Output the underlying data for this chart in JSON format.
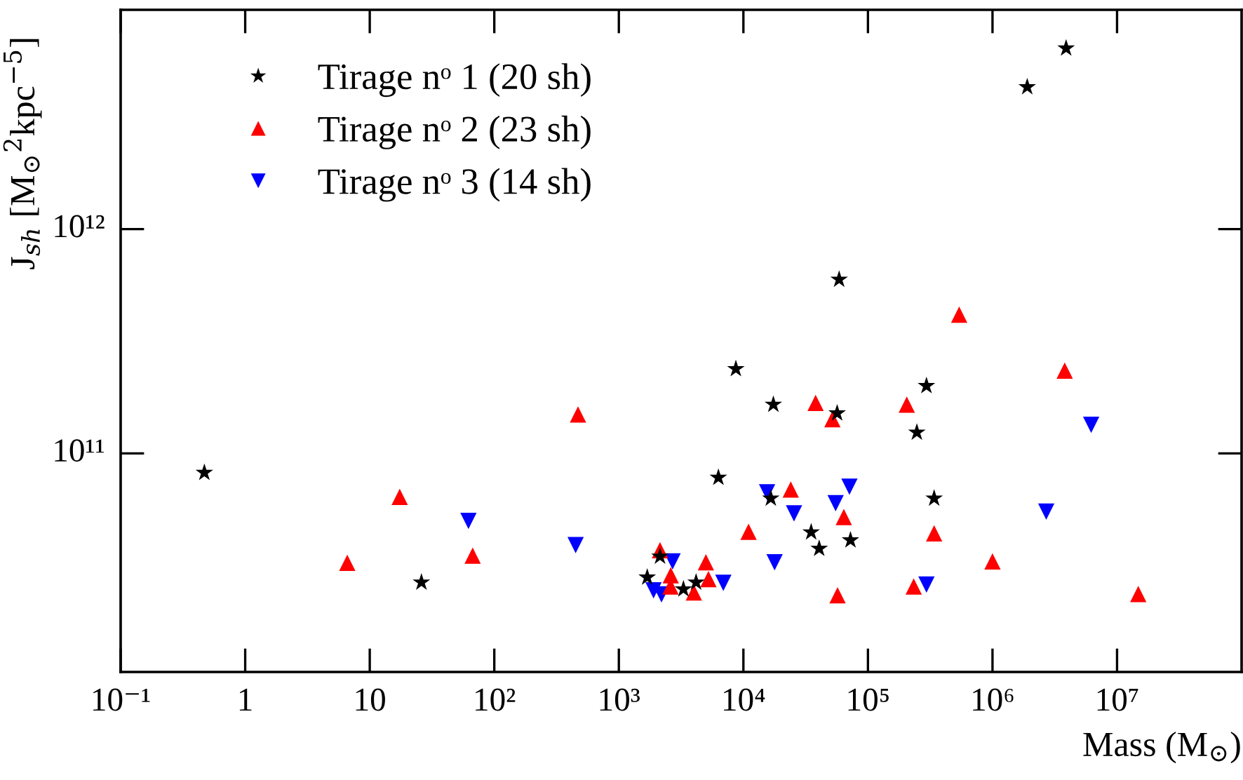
{
  "chart_data": {
    "type": "scatter",
    "xlabel": "Mass (M$_{⊙}$)",
    "ylabel": "J$_{sh}$ [M$_{⊙}$$^{2}$kpc$^{−5}$]",
    "log": "xy",
    "grid": false,
    "legend": "top left",
    "xlim": [
      0.1,
      100000000
    ],
    "ylim": [
      10600000000,
      9500000000000
    ],
    "xticks": [
      {
        "value": 0.1,
        "label": "10⁻¹"
      },
      1,
      10,
      {
        "value": 100,
        "label": "10²"
      },
      {
        "value": 1000,
        "label": "10³"
      },
      {
        "value": 10000,
        "label": "10⁴"
      },
      {
        "value": 100000,
        "label": "10⁵"
      },
      {
        "value": 1000000,
        "label": "10⁶"
      },
      {
        "value": 10000000,
        "label": "10⁷"
      }
    ],
    "yticks": [
      {
        "value": 100000000000,
        "label": "10¹¹"
      },
      {
        "value": 1000000000000,
        "label": "10¹²"
      }
    ],
    "series": [
      {
        "name": "Tirage nᵒ 1 (20 sh)",
        "color": "#000000",
        "marker": "star",
        "x": [
          0.47,
          26,
          1690,
          2140,
          3300,
          4170,
          6300,
          8700,
          17400,
          16600,
          35000,
          40600,
          56600,
          72400,
          58700,
          247000,
          295000,
          340000,
          1900000,
          3900000
        ],
        "values": [
          82000000000,
          26600000000,
          28000000000,
          34700000000,
          24800000000,
          26600000000,
          78000000000,
          238000000000,
          165000000000,
          63000000000,
          44500000000,
          37600000000,
          151000000000,
          41000000000,
          596000000000,
          124000000000,
          200000000000,
          63000000000,
          4300000000000,
          6400000000000
        ]
      },
      {
        "name": "Tirage nᵒ 2 (23 sh)",
        "color": "#ff0000",
        "marker": "triangle",
        "x": [
          6.6,
          17.4,
          67,
          470,
          2140,
          2610,
          2600,
          4000,
          5000,
          5240,
          11000,
          24000,
          38000,
          51800,
          57000,
          64000,
          205000,
          233000,
          340000,
          540000,
          1000000,
          3800000,
          14800000
        ],
        "values": [
          32500000000,
          64000000000,
          35000000000,
          149000000000,
          37000000000,
          28600000000,
          25500000000,
          24000000000,
          32700000000,
          27500000000,
          44700000000,
          69000000000,
          168000000000,
          142000000000,
          23300000000,
          52000000000,
          165000000000,
          25500000000,
          44000000000,
          415000000000,
          33000000000,
          234000000000,
          23600000000
        ]
      },
      {
        "name": "Tirage nᵒ 3 (14 sh)",
        "color": "#0000ff",
        "marker": "triangle_down",
        "x": [
          62,
          450,
          1900,
          2200,
          2700,
          6900,
          15500,
          17800,
          25500,
          55000,
          71000,
          295000,
          2700000,
          6200000
        ],
        "values": [
          50000000000,
          39000000000,
          24500000000,
          23500000000,
          33000000000,
          26500000000,
          67000000000,
          32700000000,
          54000000000,
          60000000000,
          71000000000,
          26000000000,
          55000000000,
          134000000000
        ]
      }
    ]
  }
}
